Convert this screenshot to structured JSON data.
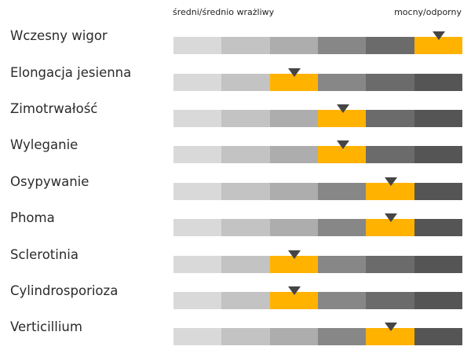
{
  "header": {
    "left": "średni/średnio wrażliwy",
    "right": "mocny/odporny"
  },
  "colors": {
    "segments": [
      "#d9d9d9",
      "#c3c3c3",
      "#adadad",
      "#878787",
      "#6b6b6b",
      "#555555"
    ],
    "highlight": "#ffb200",
    "marker": "#454545"
  },
  "rows": [
    {
      "label": "Wczesny wigor",
      "level": 6
    },
    {
      "label": "Elongacja jesienna",
      "level": 3
    },
    {
      "label": "Zimotrwałość",
      "level": 4
    },
    {
      "label": "Wyleganie",
      "level": 4
    },
    {
      "label": "Osypywanie",
      "level": 5
    },
    {
      "label": "Phoma",
      "level": 5
    },
    {
      "label": "Sclerotinia",
      "level": 3
    },
    {
      "label": "Cylindrosporioza",
      "level": 3
    },
    {
      "label": "Verticillium",
      "level": 5
    }
  ]
}
